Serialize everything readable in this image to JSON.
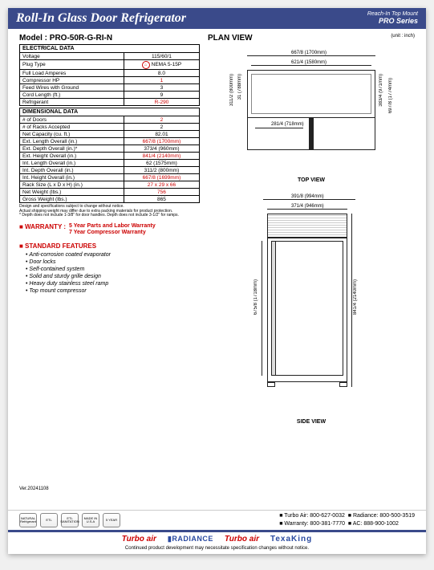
{
  "header": {
    "title": "Roll-In Glass Door Refrigerator",
    "sub1": "Reach-In Top Mount",
    "sub2": "PRO Series"
  },
  "model": "Model : PRO-50R-G-RI-N",
  "planView": {
    "title": "PLAN VIEW",
    "unit": "(unit : inch)"
  },
  "electrical": {
    "heading": "ELECTRICAL DATA",
    "rows": [
      {
        "label": "Voltage",
        "val": "115/60/1"
      },
      {
        "label": "Plug Type",
        "val": "NEMA 5-15P",
        "plug": true
      },
      {
        "label": "Full Load Amperes",
        "val": "8.0"
      },
      {
        "label": "Compressor HP",
        "val": "1",
        "red": true
      },
      {
        "label": "Feed Wires with Ground",
        "val": "3"
      },
      {
        "label": "Cord Length (ft.)",
        "val": "9"
      },
      {
        "label": "Refrigerant",
        "val": "R-290",
        "red": true
      }
    ]
  },
  "dimensional": {
    "heading": "DIMENSIONAL DATA",
    "rows": [
      {
        "label": "# of Doors",
        "val": "2",
        "red": true
      },
      {
        "label": "# of Racks Accepted",
        "val": "2"
      },
      {
        "label": "Net Capacity (cu. ft.)",
        "val": "82.01"
      },
      {
        "label": "Ext. Length Overall (in.)",
        "val": "667/8 (1700mm)",
        "red": true
      },
      {
        "label": "Ext. Depth Overall (in.)*",
        "val": "373/4 (960mm)"
      },
      {
        "label": "Ext. Height Overall (in.)",
        "val": "841/4 (2140mm)",
        "red": true
      },
      {
        "label": "Int. Length Overall (in.)",
        "val": "62 (1575mm)"
      },
      {
        "label": "Int. Depth Overall (in.)",
        "val": "311/2 (800mm)"
      },
      {
        "label": "Int. Height Overall (in.)",
        "val": "667/8 (1699mm)",
        "red": true
      },
      {
        "label": "Rack Size (L x D x H) (in.)",
        "val": "27 x 29 x 66",
        "red": true
      },
      {
        "label": "Net Weight (lbs.)",
        "val": "756",
        "red": true
      },
      {
        "label": "Gross Weight (lbs.)",
        "val": "865"
      }
    ]
  },
  "footnote": "Design and specifications subject to change without notice.\nActual shipping weight may differ due to extra packing materials for product protection.\n* Depth does not include 1-3/8\" for door handles. Depth does not include 3-1/2\" for ramps.",
  "warranty": {
    "label": "■ WARRANTY :",
    "line1": "5 Year Parts and Labor Warranty",
    "line2": "7 Year Compressor Warranty"
  },
  "features": {
    "label": "■ STANDARD FEATURES",
    "items": [
      "Anti-corrosion coated evaporator",
      "Door locks",
      "Self-contained system",
      "Solid and sturdy grille design",
      "Heavy duty stainless steel ramp",
      "Top mount compressor"
    ]
  },
  "version": "Ver.20241108",
  "topView": {
    "label": "TOP VIEW",
    "w_out": "667/8 (1700mm)",
    "w_in": "621/4 (1580mm)",
    "d_left1": "311/2 (800mm)",
    "d_left2": "31 (788mm)",
    "d_right1": "383/4 (971mm)",
    "d_right2": "697/8 (1774mm)",
    "bottom": "281/4 (718mm)"
  },
  "sideView": {
    "label": "SIDE VIEW",
    "w_top": "391/8 (994mm)",
    "w_in": "371/4 (946mm)",
    "h_left": "675/8 (1718mm)",
    "h_right": "841/4 (2140mm)"
  },
  "contacts": {
    "turbo": "Turbo Air: 800-627-0032",
    "radiance": "Radiance: 800-500-3519",
    "warranty": "Warranty: 800-381-7770",
    "ac": "AC: 888-900-1002"
  },
  "badges": [
    "NATURAL Refrigerant",
    "ETL",
    "ETL SANITATION",
    "MADE IN U.S.A",
    "5 YEAR"
  ],
  "brands": {
    "b1": "Turbo air",
    "b2": "▮RADIANCE",
    "b3": "Turbo air",
    "b4": "TexaKing"
  },
  "disclaimer": "Continued product development may necessitate specification changes without notice."
}
